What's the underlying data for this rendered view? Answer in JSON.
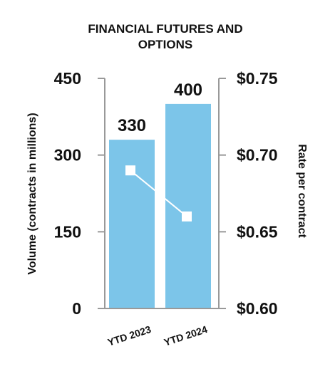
{
  "chart_data": {
    "type": "bar",
    "title_lines": [
      "FINANCIAL FUTURES AND",
      "OPTIONS"
    ],
    "categories": [
      "YTD 2023",
      "YTD 2024"
    ],
    "bar_values": [
      330,
      400
    ],
    "bar_labels": [
      "330",
      "400"
    ],
    "line_values": [
      0.69,
      0.66
    ],
    "ylabel": "Volume (contracts in millions)",
    "y2label": "Rate per contract",
    "ylim": [
      0,
      450
    ],
    "y2lim": [
      0.6,
      0.75
    ],
    "y_ticks": [
      "0",
      "150",
      "300",
      "450"
    ],
    "y2_ticks": [
      "$0.60",
      "$0.65",
      "$0.70",
      "$0.75"
    ],
    "grid": false,
    "legend": "none"
  },
  "colors": {
    "bar": "#7cc5e9",
    "line": "#ffffff",
    "axis": "#999999",
    "text": "#111111"
  }
}
